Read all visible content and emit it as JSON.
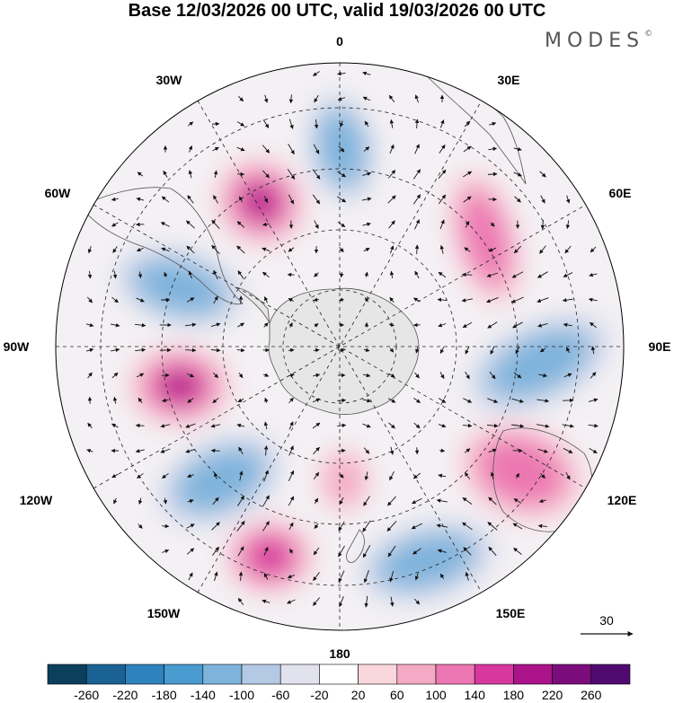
{
  "title": "Base 12/03/2026 00 UTC, valid 19/03/2026 00 UTC",
  "logo": "MODES",
  "logo_mark": "©",
  "longitude_labels": {
    "top": "0",
    "bottom": "180",
    "left": "90W",
    "right": "90E",
    "w30": "30W",
    "w60": "60W",
    "w120": "120W",
    "w150": "150W",
    "e30": "30E",
    "e60": "60E",
    "e120": "120E",
    "e150": "150E"
  },
  "reference_vector": "30",
  "colorbar": {
    "labels": [
      "-260",
      "-220",
      "-180",
      "-140",
      "-100",
      "-60",
      "-20",
      "20",
      "60",
      "100",
      "140",
      "180",
      "220",
      "260"
    ],
    "colors": [
      "#0c3f5c",
      "#1b6294",
      "#2e82bd",
      "#4a9bd0",
      "#7eb3dc",
      "#b3c9e4",
      "#e2e2ef",
      "#ffffff",
      "#f9d6dc",
      "#f4aac4",
      "#ec77b2",
      "#d8379e",
      "#aa1389",
      "#7a0c7c",
      "#4f0a6f"
    ]
  },
  "anomaly_centers": [
    {
      "sign": "positive",
      "level": 5
    },
    {
      "sign": "negative",
      "level": 3
    },
    {
      "sign": "positive",
      "level": 3
    },
    {
      "sign": "negative",
      "level": 3
    },
    {
      "sign": "positive",
      "level": 5
    },
    {
      "sign": "negative",
      "level": 3
    },
    {
      "sign": "positive",
      "level": 3
    },
    {
      "sign": "positive",
      "level": 2
    },
    {
      "sign": "negative",
      "level": 3
    },
    {
      "sign": "positive",
      "level": 4
    },
    {
      "sign": "negative",
      "level": 3
    }
  ]
}
